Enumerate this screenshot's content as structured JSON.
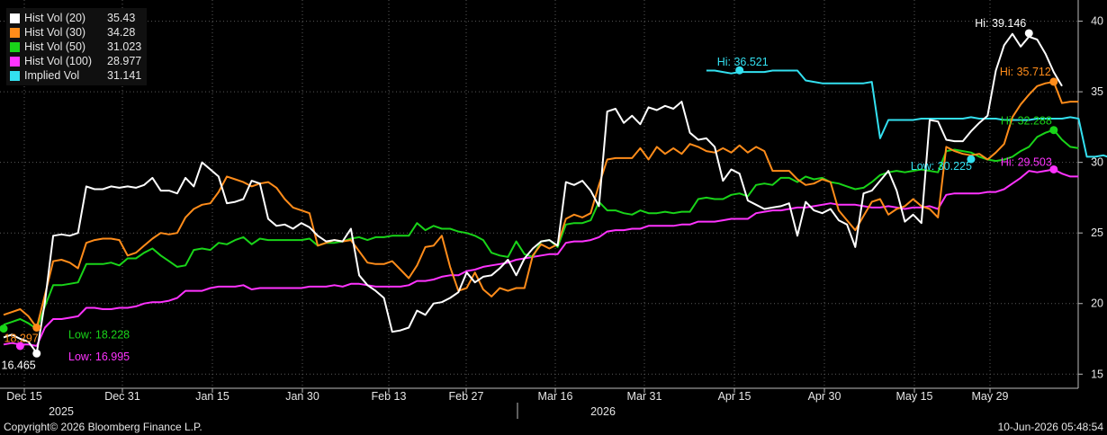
{
  "chart_data": {
    "type": "line",
    "x_ticks": [
      "Dec 15",
      "Dec 31",
      "Jan 15",
      "Jan 30",
      "Feb 13",
      "Feb 27",
      "Mar 16",
      "Mar 31",
      "Apr 15",
      "Apr 30",
      "May 15",
      "May 29"
    ],
    "years": [
      "2025",
      "2026"
    ],
    "y_ticks": [
      15,
      20,
      25,
      30,
      35,
      40
    ],
    "ylim": [
      14,
      41.5
    ],
    "grid": true,
    "legend_position": "top-left",
    "series": [
      {
        "name": "Hist Vol (20)",
        "last": "35.43",
        "color": "#ffffff",
        "values": [
          17.6,
          17.8,
          17.5,
          17.3,
          16.5,
          20.1,
          24.8,
          24.9,
          24.8,
          25.0,
          28.3,
          28.1,
          28.1,
          28.3,
          28.2,
          28.3,
          28.2,
          28.4,
          28.9,
          28.0,
          28.0,
          27.8,
          28.9,
          28.3,
          30.0,
          29.5,
          29.0,
          27.1,
          27.2,
          27.4,
          28.7,
          28.5,
          26.0,
          25.5,
          25.6,
          25.3,
          25.7,
          25.4,
          24.8,
          24.4,
          24.5,
          24.4,
          25.3,
          22.0,
          21.3,
          20.9,
          20.4,
          18.0,
          18.1,
          18.3,
          19.5,
          19.2,
          20.0,
          20.1,
          20.4,
          20.8,
          22.2,
          21.5,
          21.9,
          22.0,
          22.5,
          23.1,
          22.0,
          23.2,
          23.9,
          24.4,
          24.5,
          24.1,
          28.6,
          28.4,
          28.7,
          28.0,
          26.9,
          33.6,
          33.8,
          32.8,
          33.3,
          32.7,
          33.9,
          33.7,
          34.0,
          33.8,
          34.3,
          32.1,
          31.6,
          31.7,
          31.1,
          28.7,
          29.5,
          29.2,
          27.3,
          27.0,
          26.7,
          26.8,
          26.9,
          27.1,
          24.8,
          27.2,
          26.6,
          26.4,
          26.7,
          25.9,
          25.6,
          24.0,
          27.8,
          28.0,
          28.7,
          29.4,
          28.0,
          25.8,
          26.3,
          25.7,
          33.0,
          32.9,
          31.6,
          31.5,
          31.5,
          32.2,
          32.8,
          33.3,
          36.5,
          38.3,
          39.1,
          38.2,
          38.9,
          38.7,
          37.7,
          36.4,
          35.4
        ]
      },
      {
        "name": "Hist Vol (30)",
        "last": "34.28",
        "color": "#ff8c1a",
        "values": [
          19.2,
          19.4,
          19.6,
          19.1,
          18.3,
          20.6,
          23.0,
          23.1,
          22.9,
          22.5,
          24.3,
          24.5,
          24.6,
          24.6,
          24.5,
          23.4,
          23.6,
          24.1,
          24.6,
          25.0,
          24.9,
          25.0,
          26.1,
          26.7,
          27.0,
          27.1,
          27.9,
          29.0,
          28.8,
          28.6,
          28.3,
          28.5,
          28.6,
          28.2,
          27.4,
          26.8,
          26.6,
          26.4,
          24.1,
          24.3,
          24.5,
          24.4,
          24.5,
          23.7,
          22.9,
          22.8,
          22.8,
          23.0,
          22.4,
          21.8,
          22.7,
          24.0,
          24.1,
          24.8,
          22.6,
          20.9,
          21.1,
          22.2,
          21.0,
          20.5,
          21.1,
          20.9,
          21.1,
          21.1,
          23.4,
          24.2,
          23.9,
          24.2,
          26.0,
          26.3,
          26.1,
          26.4,
          28.4,
          30.2,
          30.3,
          30.3,
          30.3,
          31.0,
          30.2,
          31.1,
          30.6,
          31.0,
          30.6,
          31.3,
          31.1,
          30.8,
          30.7,
          31.0,
          30.7,
          31.2,
          30.7,
          31.1,
          30.8,
          29.4,
          29.4,
          29.4,
          28.8,
          28.4,
          28.5,
          28.8,
          28.6,
          26.6,
          25.9,
          25.2,
          26.2,
          27.2,
          27.4,
          26.3,
          26.7,
          26.9,
          27.4,
          26.9,
          26.7,
          26.1,
          31.1,
          30.8,
          30.6,
          30.5,
          30.6,
          30.2,
          30.7,
          31.3,
          33.2,
          34.1,
          34.8,
          35.4,
          35.6,
          35.7,
          34.2,
          34.3,
          34.3
        ]
      },
      {
        "name": "Hist Vol (50)",
        "last": "31.023",
        "color": "#19d419",
        "values": [
          18.5,
          18.7,
          18.9,
          18.6,
          18.2,
          19.8,
          21.3,
          21.3,
          21.4,
          21.5,
          22.8,
          22.8,
          22.8,
          22.9,
          22.7,
          23.2,
          23.2,
          23.6,
          23.9,
          23.4,
          23.0,
          22.6,
          22.7,
          23.8,
          23.9,
          23.8,
          24.3,
          24.2,
          24.5,
          24.7,
          24.2,
          24.6,
          24.5,
          24.5,
          24.5,
          24.5,
          24.5,
          24.6,
          24.1,
          24.3,
          24.3,
          24.4,
          24.6,
          24.7,
          24.5,
          24.7,
          24.7,
          24.8,
          24.8,
          24.8,
          25.7,
          25.2,
          25.5,
          25.3,
          25.3,
          25.1,
          25.0,
          24.8,
          24.5,
          23.6,
          23.4,
          23.3,
          24.4,
          23.5,
          23.3,
          24.4,
          24.5,
          24.0,
          25.6,
          25.7,
          25.7,
          25.9,
          27.2,
          26.6,
          26.6,
          26.4,
          26.3,
          26.6,
          26.4,
          26.4,
          26.5,
          26.4,
          26.5,
          26.5,
          27.4,
          27.5,
          27.4,
          27.4,
          27.7,
          27.8,
          27.6,
          28.4,
          28.5,
          28.4,
          28.9,
          28.9,
          28.6,
          29.0,
          28.8,
          28.9,
          28.6,
          28.5,
          28.3,
          28.1,
          28.2,
          28.6,
          29.1,
          29.3,
          29.4,
          29.3,
          29.4,
          29.5,
          29.4,
          29.3,
          30.8,
          30.9,
          30.8,
          30.7,
          30.4,
          30.2,
          30.1,
          30.2,
          30.4,
          30.8,
          31.1,
          31.8,
          32.1,
          32.3,
          31.6,
          31.1,
          31.0
        ]
      },
      {
        "name": "Hist Vol (100)",
        "last": "28.977",
        "color": "#ff33ff",
        "values": [
          17.1,
          17.2,
          17.1,
          17.1,
          17.0,
          18.3,
          18.9,
          18.9,
          19.0,
          19.1,
          19.7,
          19.7,
          19.6,
          19.6,
          19.7,
          19.7,
          19.8,
          20.0,
          20.1,
          20.1,
          20.2,
          20.4,
          20.9,
          20.9,
          20.9,
          21.1,
          21.2,
          21.2,
          21.2,
          21.3,
          21.0,
          21.1,
          21.1,
          21.1,
          21.1,
          21.1,
          21.1,
          21.2,
          21.2,
          21.2,
          21.3,
          21.2,
          21.4,
          21.4,
          21.3,
          21.2,
          21.2,
          21.2,
          21.2,
          21.3,
          21.6,
          21.6,
          21.7,
          21.9,
          22.0,
          22.0,
          22.3,
          22.4,
          22.6,
          22.7,
          22.8,
          22.9,
          23.1,
          23.2,
          23.3,
          23.4,
          23.5,
          23.5,
          24.3,
          24.4,
          24.4,
          24.5,
          24.7,
          25.1,
          25.2,
          25.2,
          25.3,
          25.3,
          25.5,
          25.5,
          25.5,
          25.5,
          25.6,
          25.6,
          25.8,
          25.8,
          25.8,
          25.9,
          26.0,
          26.0,
          26.0,
          26.4,
          26.5,
          26.6,
          26.6,
          26.7,
          26.8,
          26.8,
          26.9,
          27.0,
          27.1,
          27.0,
          27.0,
          27.0,
          26.9,
          26.8,
          26.8,
          26.9,
          26.8,
          26.7,
          26.8,
          26.8,
          26.9,
          26.7,
          27.7,
          27.8,
          27.8,
          27.8,
          27.8,
          27.9,
          27.9,
          28.1,
          28.5,
          28.9,
          29.4,
          29.3,
          29.4,
          29.5,
          29.2,
          29.0,
          29.0
        ]
      },
      {
        "name": "Implied Vol",
        "last": "31.141",
        "color": "#33e0f0",
        "start_index": 85,
        "values": [
          36.5,
          36.5,
          36.4,
          36.3,
          36.4,
          36.4,
          36.4,
          36.4,
          36.5,
          36.5,
          36.5,
          36.5,
          35.8,
          35.7,
          35.6,
          35.6,
          35.6,
          35.6,
          35.6,
          35.6,
          35.7,
          31.7,
          33.0,
          33.0,
          33.0,
          33.0,
          33.1,
          33.1,
          33.1,
          33.1,
          33.1,
          33.1,
          33.2,
          33.1,
          33.1,
          33.1,
          33.0,
          33.0,
          33.0,
          33.0,
          33.1,
          33.1,
          33.1,
          33.1,
          33.2,
          33.1,
          30.4,
          30.4,
          30.5,
          30.3,
          30.3,
          30.2,
          30.2,
          30.2,
          30.3,
          30.4,
          30.4,
          30.6,
          30.8,
          31.0,
          31.2,
          31.4,
          31.4,
          31.3,
          31.2,
          31.1
        ]
      }
    ],
    "annotations": [
      {
        "text": "Hi: 39.146",
        "series": 0,
        "index": 124,
        "value": 39.146,
        "side": "left",
        "color": "#ffffff"
      },
      {
        "text": "Hi: 35.712",
        "series": 1,
        "index": 127,
        "value": 35.712,
        "side": "left",
        "color": "#ff8c1a"
      },
      {
        "text": "Hi: 32.288",
        "series": 2,
        "index": 127,
        "value": 32.288,
        "side": "left",
        "color": "#19d419"
      },
      {
        "text": "Hi: 29.503",
        "series": 3,
        "index": 127,
        "value": 29.503,
        "side": "left",
        "color": "#ff33ff"
      },
      {
        "text": "Hi: 36.521",
        "series": 4,
        "index": 89,
        "value": 36.521,
        "side": "left",
        "color": "#33e0f0"
      },
      {
        "text": "Low: 16.465",
        "series": 0,
        "index": 4,
        "value": 16.465,
        "side": "below-left",
        "color": "#ffffff"
      },
      {
        "text": "Low: 18.297",
        "series": 1,
        "index": 4,
        "value": 18.297,
        "side": "below-left",
        "color": "#ff8c1a"
      },
      {
        "text": "Low: 18.228",
        "series": 2,
        "index": 0,
        "value": 18.228,
        "side": "right",
        "color": "#19d419"
      },
      {
        "text": "Low: 16.995",
        "series": 3,
        "index": 2,
        "value": 16.995,
        "side": "right",
        "color": "#ff33ff"
      },
      {
        "text": "Low: 30.225",
        "series": 4,
        "index": 117,
        "value": 30.225,
        "side": "left",
        "color": "#33e0f0"
      }
    ]
  },
  "footer": {
    "copyright": "Copyright© 2026 Bloomberg Finance L.P.",
    "timestamp": "10-Jun-2026 05:48:54"
  }
}
